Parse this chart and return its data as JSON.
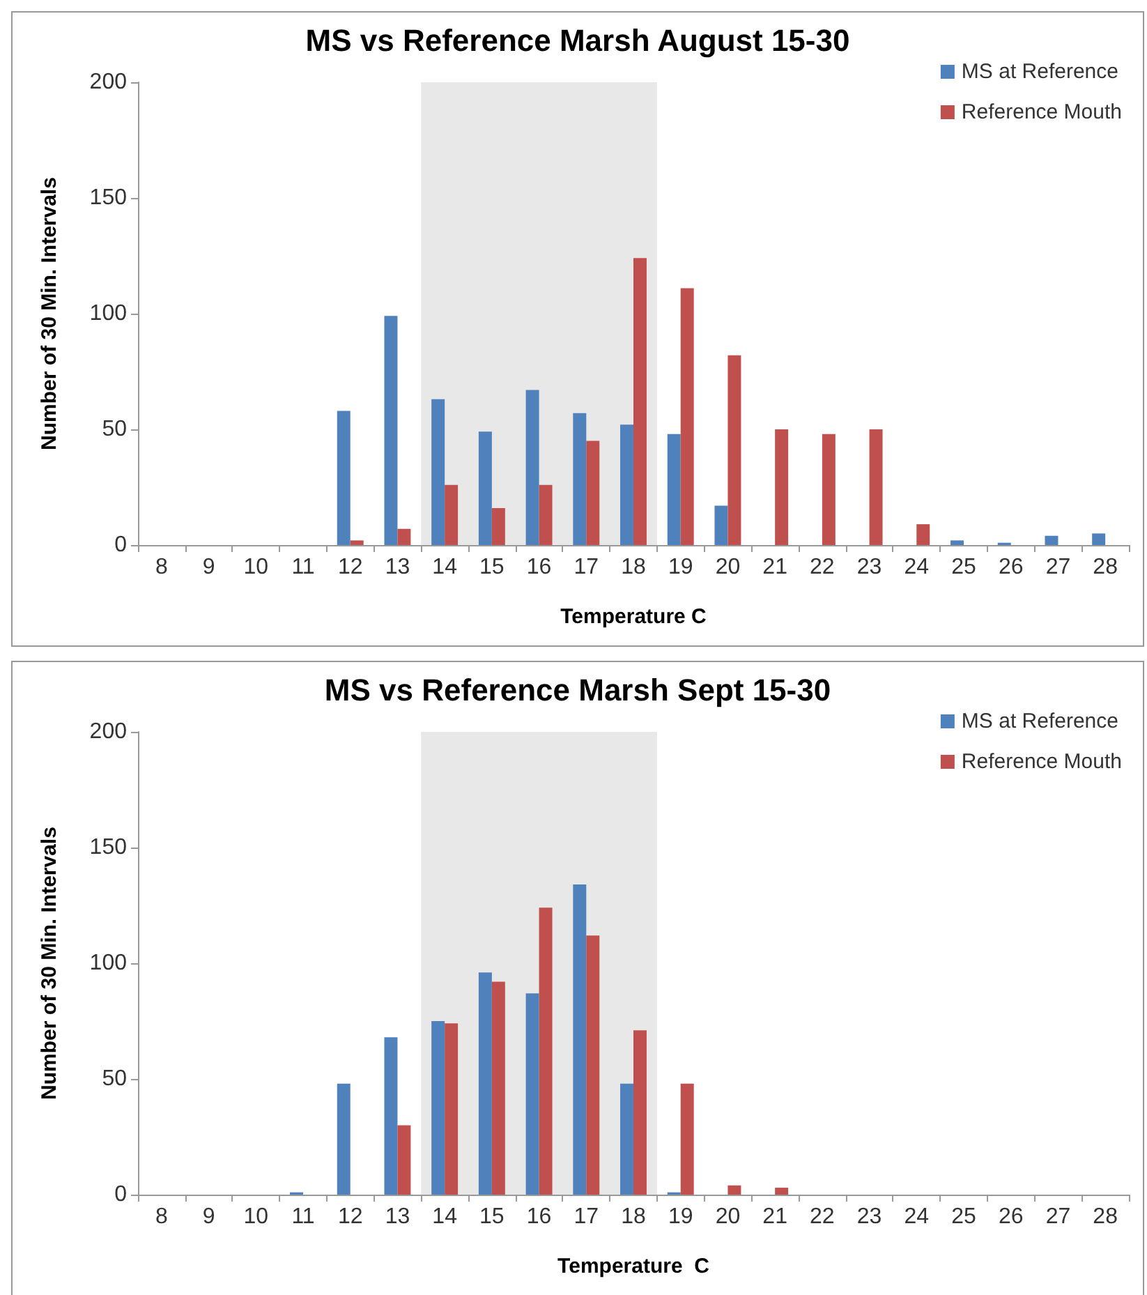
{
  "chart_data": [
    {
      "type": "bar",
      "title": "MS vs Reference Marsh August 15-30",
      "xlabel": "Temperature C",
      "ylabel": "Number of 30 Min. Intervals",
      "categories": [
        "8",
        "9",
        "10",
        "11",
        "12",
        "13",
        "14",
        "15",
        "16",
        "17",
        "18",
        "19",
        "20",
        "21",
        "22",
        "23",
        "24",
        "25",
        "26",
        "27",
        "28"
      ],
      "series": [
        {
          "name": "MS at Reference",
          "color": "#4f81bd",
          "values": [
            0,
            0,
            0,
            0,
            58,
            99,
            63,
            49,
            67,
            57,
            52,
            48,
            17,
            0,
            0,
            0,
            0,
            2,
            1,
            4,
            5
          ]
        },
        {
          "name": "Reference Mouth",
          "color": "#c0504d",
          "values": [
            0,
            0,
            0,
            0,
            2,
            7,
            26,
            16,
            26,
            45,
            124,
            111,
            82,
            50,
            48,
            50,
            9,
            0,
            0,
            0,
            0
          ]
        }
      ],
      "ylim": [
        0,
        200
      ],
      "yticks": [
        0,
        50,
        100,
        150,
        200
      ],
      "grid": false,
      "legend": "top right",
      "bands": [
        {
          "axis": "x",
          "from": "14",
          "to": "18",
          "color": "#e8e8e8"
        }
      ]
    },
    {
      "type": "bar",
      "title": "MS vs Reference Marsh Sept 15-30",
      "xlabel": "Temperature  C",
      "ylabel": "Number of 30 Min. Intervals",
      "categories": [
        "8",
        "9",
        "10",
        "11",
        "12",
        "13",
        "14",
        "15",
        "16",
        "17",
        "18",
        "19",
        "20",
        "21",
        "22",
        "23",
        "24",
        "25",
        "26",
        "27",
        "28"
      ],
      "series": [
        {
          "name": "MS at Reference",
          "color": "#4f81bd",
          "values": [
            0,
            0,
            0,
            1,
            48,
            68,
            75,
            96,
            87,
            134,
            48,
            1,
            0,
            0,
            0,
            0,
            0,
            0,
            0,
            0,
            0
          ]
        },
        {
          "name": "Reference Mouth",
          "color": "#c0504d",
          "values": [
            0,
            0,
            0,
            0,
            0,
            30,
            74,
            92,
            124,
            112,
            71,
            48,
            4,
            3,
            0,
            0,
            0,
            0,
            0,
            0,
            0
          ]
        }
      ],
      "ylim": [
        0,
        200
      ],
      "yticks": [
        0,
        50,
        100,
        150,
        200
      ],
      "grid": false,
      "legend": "top right",
      "bands": [
        {
          "axis": "x",
          "from": "14",
          "to": "18",
          "color": "#e8e8e8"
        }
      ]
    }
  ]
}
